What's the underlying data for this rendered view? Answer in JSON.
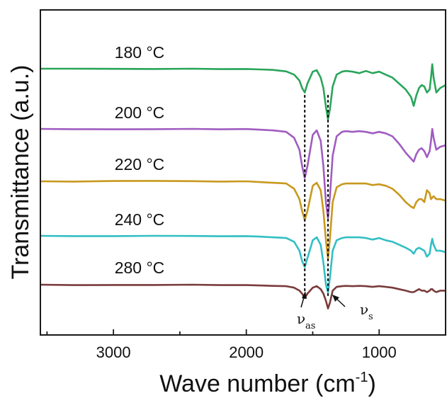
{
  "chart_data": {
    "type": "line",
    "title": "",
    "xlabel_main": "Wave number (cm",
    "xlabel_sup": "-1",
    "xlabel_close": ")",
    "ylabel": "Transmittance (a.u.)",
    "xlim": [
      3550,
      500
    ],
    "x_ticks": [
      3000,
      2000,
      1000
    ],
    "x_tick_labels": [
      "3000",
      "2000",
      "1000"
    ],
    "grid": false,
    "dotted_guides": [
      1560,
      1385
    ],
    "annotations": [
      {
        "symbol": "ν",
        "subscript": "as"
      },
      {
        "symbol": "ν",
        "subscript": "s"
      }
    ],
    "series": [
      {
        "name": "180 °C",
        "color": "#2aa55a",
        "x": [
          3550,
          3300,
          3000,
          2700,
          2400,
          2200,
          2000,
          1900,
          1800,
          1700,
          1640,
          1600,
          1580,
          1560,
          1540,
          1500,
          1470,
          1440,
          1420,
          1400,
          1385,
          1370,
          1350,
          1320,
          1280,
          1250,
          1200,
          1150,
          1100,
          1050,
          1000,
          950,
          900,
          850,
          800,
          760,
          740,
          720,
          700,
          680,
          660,
          640,
          620,
          610,
          600,
          590,
          570,
          540,
          500
        ],
        "y": [
          0,
          0,
          0.1,
          0.2,
          0,
          0.3,
          0.2,
          0.5,
          0.8,
          1.8,
          4,
          8,
          13,
          16,
          10,
          2,
          1,
          6,
          13,
          26,
          34,
          27,
          12,
          4,
          2,
          1.5,
          2,
          3,
          1.5,
          3,
          2,
          4,
          6,
          10,
          14,
          19,
          25,
          18,
          13,
          11,
          12,
          16,
          14,
          6,
          -3,
          6,
          16,
          13,
          11
        ]
      },
      {
        "name": "200 °C",
        "color": "#a05cc0",
        "x": [
          3550,
          3300,
          3000,
          2700,
          2400,
          2200,
          2000,
          1900,
          1800,
          1700,
          1640,
          1600,
          1580,
          1560,
          1540,
          1500,
          1470,
          1440,
          1420,
          1400,
          1385,
          1370,
          1350,
          1320,
          1280,
          1250,
          1200,
          1150,
          1100,
          1050,
          1000,
          950,
          900,
          850,
          800,
          760,
          740,
          720,
          700,
          680,
          660,
          640,
          620,
          610,
          600,
          590,
          570,
          540,
          500
        ],
        "y": [
          0,
          0.2,
          0.3,
          0.2,
          0,
          0.3,
          0.1,
          0.5,
          1,
          2,
          6,
          14,
          25,
          33,
          25,
          4,
          1,
          8,
          25,
          50,
          60,
          45,
          18,
          5,
          2,
          1.5,
          2,
          1.5,
          2,
          3,
          2,
          3,
          5,
          10,
          16,
          20,
          22,
          17,
          14,
          13,
          15,
          19,
          15,
          8,
          0,
          6,
          14,
          12,
          11
        ]
      },
      {
        "name": "220 °C",
        "color": "#c8991e",
        "x": [
          3550,
          3300,
          3000,
          2700,
          2400,
          2200,
          2000,
          1900,
          1800,
          1700,
          1640,
          1600,
          1580,
          1560,
          1540,
          1500,
          1470,
          1440,
          1420,
          1400,
          1385,
          1370,
          1350,
          1320,
          1280,
          1250,
          1200,
          1150,
          1100,
          1050,
          1000,
          950,
          900,
          850,
          800,
          760,
          740,
          720,
          700,
          680,
          660,
          640,
          620,
          610,
          600,
          590,
          570,
          540,
          500
        ],
        "y": [
          0,
          0.2,
          -0.2,
          -0.3,
          -0.1,
          0.2,
          0,
          0.5,
          1,
          1.5,
          5,
          12,
          20,
          26,
          20,
          3,
          1,
          6,
          20,
          40,
          52,
          38,
          14,
          4,
          2,
          1.5,
          1.5,
          1.5,
          1.5,
          2.5,
          2,
          3,
          5,
          9,
          14,
          17,
          18,
          14,
          12,
          12,
          14,
          6,
          8,
          12,
          11,
          10,
          12,
          12,
          13
        ]
      },
      {
        "name": "240 °C",
        "color": "#32bfc4",
        "x": [
          3550,
          3300,
          3000,
          2700,
          2400,
          2200,
          2000,
          1900,
          1800,
          1700,
          1640,
          1600,
          1580,
          1560,
          1540,
          1500,
          1470,
          1440,
          1420,
          1400,
          1385,
          1370,
          1350,
          1320,
          1280,
          1250,
          1200,
          1150,
          1100,
          1050,
          1000,
          950,
          900,
          850,
          800,
          760,
          740,
          720,
          700,
          680,
          660,
          640,
          620,
          610,
          600,
          590,
          570,
          540,
          500
        ],
        "y": [
          0,
          0.2,
          0.2,
          0,
          0.1,
          0.3,
          0.2,
          0.5,
          1,
          1.5,
          4,
          10,
          17,
          21,
          15,
          3,
          1,
          6,
          18,
          33,
          38,
          28,
          10,
          3,
          1.5,
          1,
          1,
          1,
          1.5,
          2.5,
          1.5,
          3,
          4,
          6,
          8,
          10,
          12,
          9,
          8,
          9,
          10,
          14,
          12,
          6,
          2,
          6,
          10,
          10,
          11
        ]
      },
      {
        "name": "280 °C",
        "color": "#7a3b3b",
        "x": [
          3550,
          3300,
          3000,
          2700,
          2400,
          2200,
          2000,
          1900,
          1800,
          1700,
          1640,
          1600,
          1580,
          1560,
          1540,
          1500,
          1470,
          1440,
          1420,
          1400,
          1385,
          1370,
          1350,
          1320,
          1280,
          1250,
          1200,
          1150,
          1100,
          1050,
          1000,
          950,
          900,
          850,
          800,
          760,
          740,
          720,
          700,
          680,
          660,
          640,
          620,
          610,
          600,
          590,
          570,
          540,
          500
        ],
        "y": [
          0,
          0.3,
          0.2,
          0.2,
          0,
          0.3,
          0.3,
          0.5,
          0.8,
          1,
          2,
          4,
          6,
          9,
          6,
          2,
          1,
          3,
          6,
          11,
          16,
          12,
          4,
          1.5,
          1,
          0.8,
          1,
          0.8,
          1,
          1.5,
          1,
          1.5,
          2,
          3,
          4,
          5,
          5,
          4,
          3,
          4,
          4,
          5,
          4,
          3,
          3,
          4,
          5,
          4,
          4
        ]
      }
    ]
  }
}
